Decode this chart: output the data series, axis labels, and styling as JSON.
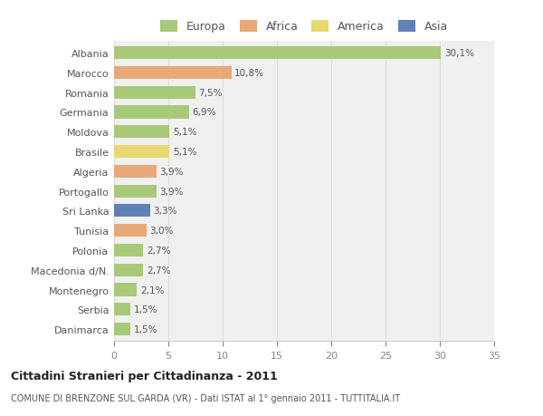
{
  "countries": [
    "Albania",
    "Marocco",
    "Romania",
    "Germania",
    "Moldova",
    "Brasile",
    "Algeria",
    "Portogallo",
    "Sri Lanka",
    "Tunisia",
    "Polonia",
    "Macedonia d/N.",
    "Montenegro",
    "Serbia",
    "Danimarca"
  ],
  "values": [
    30.1,
    10.8,
    7.5,
    6.9,
    5.1,
    5.1,
    3.9,
    3.9,
    3.3,
    3.0,
    2.7,
    2.7,
    2.1,
    1.5,
    1.5
  ],
  "labels": [
    "30,1%",
    "10,8%",
    "7,5%",
    "6,9%",
    "5,1%",
    "5,1%",
    "3,9%",
    "3,9%",
    "3,3%",
    "3,0%",
    "2,7%",
    "2,7%",
    "2,1%",
    "1,5%",
    "1,5%"
  ],
  "categories": [
    "Europa",
    "Africa",
    "America",
    "Asia"
  ],
  "bar_colors": [
    "#a8c87a",
    "#e8a878",
    "#a8c87a",
    "#a8c87a",
    "#a8c87a",
    "#e8d870",
    "#e8a878",
    "#a8c87a",
    "#6080b8",
    "#e8a878",
    "#a8c87a",
    "#a8c87a",
    "#a8c87a",
    "#a8c87a",
    "#a8c87a"
  ],
  "legend_colors": [
    "#a8c87a",
    "#e8a878",
    "#e8d870",
    "#6080b8"
  ],
  "title": "Cittadini Stranieri per Cittadinanza - 2011",
  "subtitle": "COMUNE DI BRENZONE SUL GARDA (VR) - Dati ISTAT al 1° gennaio 2011 - TUTTITALIA.IT",
  "xlim": [
    0,
    35
  ],
  "xticks": [
    0,
    5,
    10,
    15,
    20,
    25,
    30,
    35
  ],
  "background_color": "#ffffff",
  "plot_background": "#f0f0f0"
}
